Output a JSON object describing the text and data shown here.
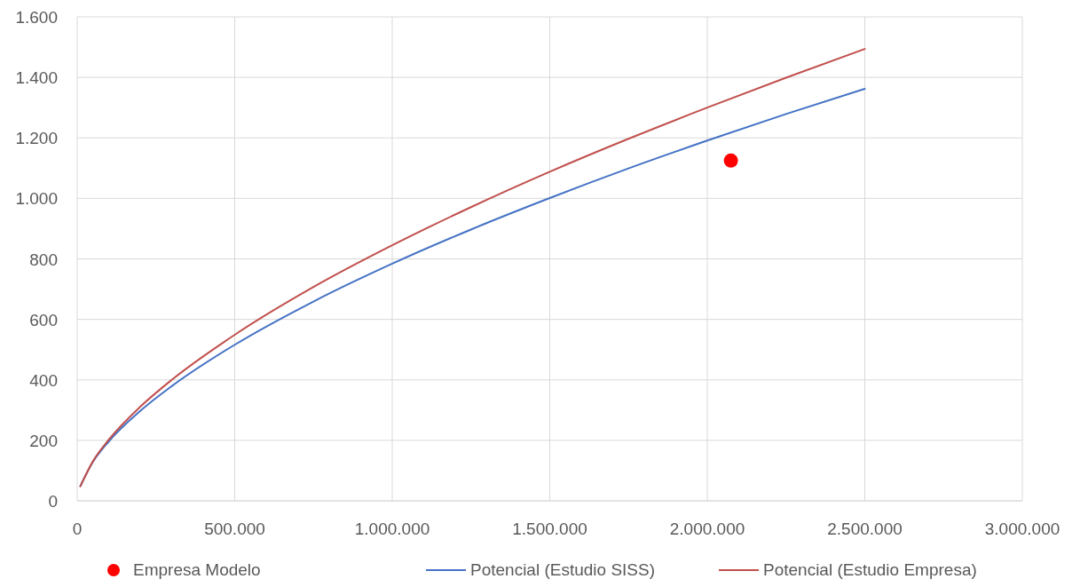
{
  "chart_data": {
    "type": "line",
    "xlim": [
      0,
      3000000
    ],
    "ylim": [
      0,
      1600
    ],
    "xticks": [
      0,
      {
        "value": 500000,
        "label": "500.000"
      },
      {
        "value": 1000000,
        "label": "1.000.000"
      },
      {
        "value": 1500000,
        "label": "1.500.000"
      },
      {
        "value": 2000000,
        "label": "2.000.000"
      },
      {
        "value": 2500000,
        "label": "2.500.000"
      },
      {
        "value": 3000000,
        "label": "3.000.000"
      }
    ],
    "yticks": [
      0,
      200,
      400,
      600,
      800,
      {
        "value": 1000,
        "label": "1.000"
      },
      {
        "value": 1200,
        "label": "1.200"
      },
      {
        "value": 1400,
        "label": "1.400"
      },
      {
        "value": 1600,
        "label": "1.600"
      }
    ],
    "grid": true,
    "legend": "bottom",
    "series": [
      {
        "name": "Empresa Modelo",
        "type": "scatter",
        "marker": "circle",
        "color": "#ff0000",
        "x": [
          2075000
        ],
        "values": [
          1125
        ]
      },
      {
        "name": "Potencial (Estudio SISS)",
        "color": "#4472c4",
        "x": [
          10000,
          50000,
          100000,
          200000,
          300000,
          500000,
          750000,
          1000000,
          1250000,
          1500000,
          1750000,
          2000000,
          2250000,
          2500000
        ],
        "values": [
          49,
          129,
          196,
          297,
          379,
          516,
          659,
          784,
          897,
          1001,
          1099,
          1191,
          1279,
          1362
        ]
      },
      {
        "name": "Potencial (Estudio Empresa)",
        "color": "#c0504d",
        "x": [
          10000,
          50000,
          100000,
          200000,
          300000,
          500000,
          750000,
          1000000,
          1250000,
          1500000,
          1750000,
          2000000,
          2250000,
          2500000
        ],
        "values": [
          48,
          131,
          202,
          311,
          400,
          549,
          707,
          845,
          971,
          1088,
          1197,
          1300,
          1399,
          1494
        ]
      }
    ]
  }
}
